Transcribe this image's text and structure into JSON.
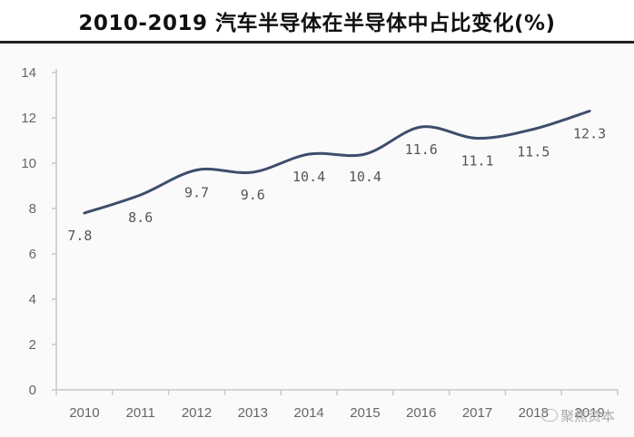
{
  "chart_data": {
    "type": "line",
    "title": "2010-2019 汽车半导体在半导体中占比变化(%)",
    "x": [
      "2010",
      "2011",
      "2012",
      "2013",
      "2014",
      "2015",
      "2016",
      "2017",
      "2018",
      "2019"
    ],
    "series": [
      {
        "values": [
          7.8,
          8.6,
          9.7,
          9.6,
          10.4,
          10.4,
          11.6,
          11.1,
          11.5,
          12.3
        ]
      }
    ],
    "data_labels": [
      "7.8",
      "8.6",
      "9.7",
      "9.6",
      "10.4",
      "10.4",
      "11.6",
      "11.1",
      "11.5",
      "12.3"
    ],
    "yticks": [
      "0",
      "2",
      "4",
      "6",
      "8",
      "10",
      "12",
      "14"
    ],
    "ylim": [
      0,
      14
    ],
    "xlabel": "",
    "ylabel": "",
    "grid": false,
    "line_color": "#3e4d6b"
  },
  "watermark": {
    "text": "聚焦资本"
  }
}
